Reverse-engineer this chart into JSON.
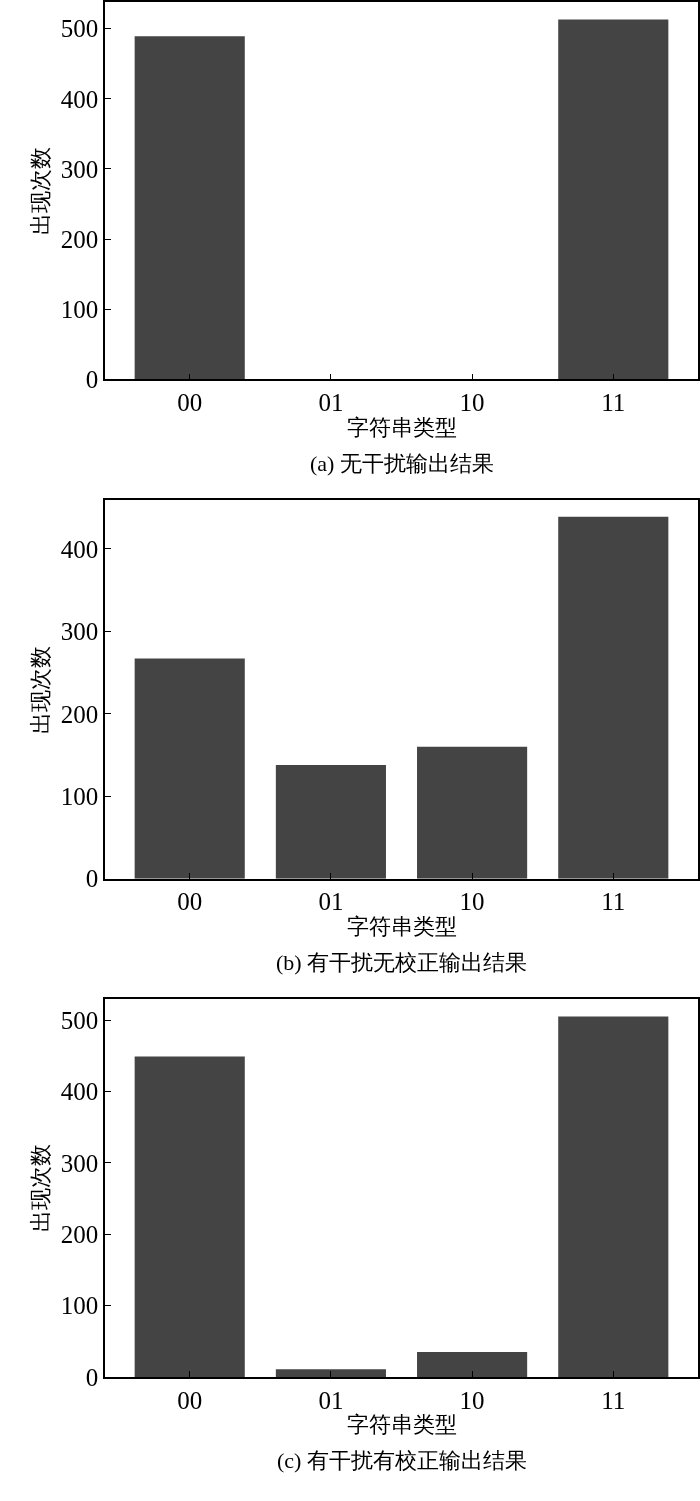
{
  "chart_data": [
    {
      "type": "bar",
      "title": "(a) 无干扰输出结果",
      "xlabel": "字符串类型",
      "ylabel": "出现次数",
      "categories": [
        "00",
        "01",
        "10",
        "11"
      ],
      "values": [
        489,
        0,
        0,
        513
      ],
      "color": "#444444",
      "ylim": [
        0,
        538
      ],
      "yticks": [
        0,
        100,
        200,
        300,
        400,
        500
      ]
    },
    {
      "type": "bar",
      "title": "(b) 有干扰无校正输出结果",
      "xlabel": "字符串类型",
      "ylabel": "出现次数",
      "categories": [
        "00",
        "01",
        "10",
        "11"
      ],
      "values": [
        267,
        138,
        160,
        439
      ],
      "color": "#444444",
      "ylim": [
        0,
        459
      ],
      "yticks": [
        0,
        100,
        200,
        300,
        400
      ]
    },
    {
      "type": "bar",
      "title": "(c) 有干扰有校正输出结果",
      "xlabel": "字符串类型",
      "ylabel": "出现次数",
      "categories": [
        "00",
        "01",
        "10",
        "11"
      ],
      "values": [
        449,
        11,
        35,
        505
      ],
      "color": "#444444",
      "ylim": [
        0,
        530
      ],
      "yticks": [
        0,
        100,
        200,
        300,
        400,
        500
      ]
    }
  ]
}
